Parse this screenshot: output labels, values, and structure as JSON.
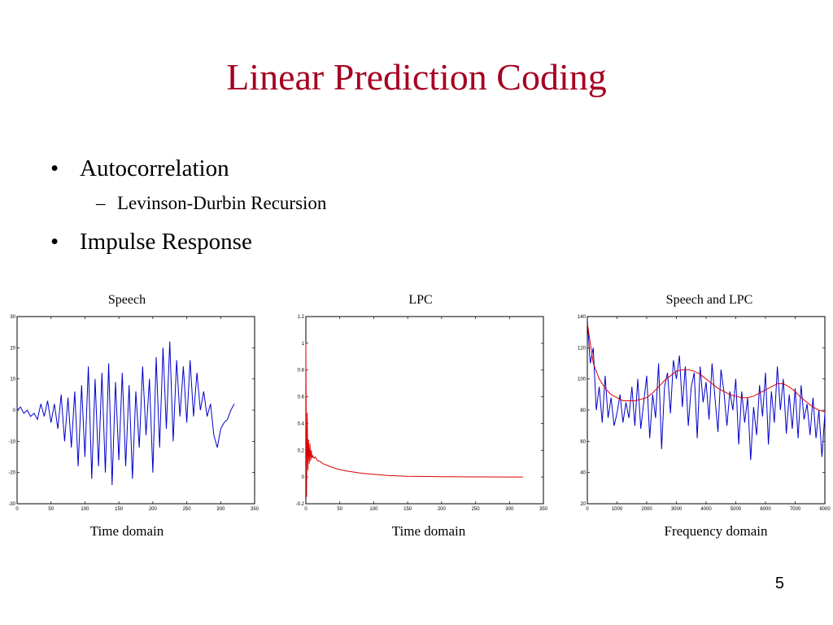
{
  "slide": {
    "title": "Linear Prediction Coding",
    "bullets": [
      {
        "text": "Autocorrelation",
        "sub": [
          "Levinson-Durbin Recursion"
        ]
      },
      {
        "text": "Impulse Response",
        "sub": []
      }
    ],
    "bullet_mark": "•",
    "sub_mark": "–",
    "page_number": "5"
  },
  "colors": {
    "title": "#a50021",
    "speech": "#0000cc",
    "lpc": "#dd0000"
  },
  "chart_data": [
    {
      "type": "line",
      "title": "Speech",
      "xlabel": "Time domain",
      "xlim": [
        0,
        350
      ],
      "ylim": [
        -30,
        30
      ],
      "xticks": [
        "0",
        "50",
        "100",
        "150",
        "200",
        "250",
        "300",
        "350"
      ],
      "yticks": [
        "-30",
        "-20",
        "-10",
        "0",
        "10",
        "20",
        "30"
      ],
      "series": [
        {
          "color": "#0000cc",
          "x": [
            0,
            5,
            10,
            15,
            20,
            25,
            30,
            35,
            40,
            45,
            50,
            55,
            60,
            65,
            70,
            75,
            80,
            85,
            90,
            95,
            100,
            105,
            110,
            115,
            120,
            125,
            130,
            135,
            140,
            145,
            150,
            155,
            160,
            165,
            170,
            175,
            180,
            185,
            190,
            195,
            200,
            205,
            210,
            215,
            220,
            225,
            230,
            235,
            240,
            245,
            250,
            255,
            260,
            265,
            270,
            275,
            280,
            285,
            290,
            295,
            300,
            305,
            310,
            315,
            320
          ],
          "y": [
            0,
            1,
            -1,
            0,
            -2,
            -1,
            -3,
            2,
            -2,
            3,
            -4,
            2,
            -6,
            5,
            -10,
            4,
            -12,
            6,
            -18,
            8,
            -15,
            14,
            -22,
            10,
            -18,
            12,
            -20,
            15,
            -24,
            9,
            -16,
            12,
            -18,
            8,
            -22,
            6,
            -12,
            14,
            -8,
            10,
            -20,
            17,
            -12,
            20,
            -6,
            22,
            -10,
            16,
            -2,
            14,
            -4,
            16,
            -2,
            12,
            0,
            6,
            -2,
            2,
            -8,
            -12,
            -6,
            -4,
            -3,
            0,
            2
          ]
        }
      ]
    },
    {
      "type": "line",
      "title": "LPC",
      "xlabel": "Time domain",
      "xlim": [
        0,
        350
      ],
      "ylim": [
        -0.2,
        1.2
      ],
      "xticks": [
        "0",
        "50",
        "100",
        "150",
        "200",
        "250",
        "300",
        "350"
      ],
      "yticks": [
        "-0.2",
        "0",
        "0.2",
        "0.4",
        "0.6",
        "0.8",
        "1",
        "1.2"
      ],
      "series": [
        {
          "color": "#dd0000",
          "x": [
            0,
            1,
            2,
            3,
            4,
            5,
            6,
            7,
            8,
            9,
            10,
            12,
            14,
            16,
            18,
            20,
            25,
            30,
            40,
            50,
            60,
            80,
            100,
            120,
            150,
            200,
            250,
            300,
            320
          ],
          "y": [
            1.0,
            -0.15,
            0.48,
            0.05,
            0.28,
            0.1,
            0.25,
            0.12,
            0.2,
            0.14,
            0.16,
            0.14,
            0.15,
            0.13,
            0.12,
            0.12,
            0.1,
            0.09,
            0.07,
            0.055,
            0.045,
            0.03,
            0.02,
            0.012,
            0.006,
            0.002,
            0.001,
            0.0,
            0.0
          ]
        }
      ]
    },
    {
      "type": "line",
      "title": "Speech and LPC",
      "xlabel": "Frequency domain",
      "xlim": [
        0,
        8000
      ],
      "ylim": [
        20,
        140
      ],
      "xticks": [
        "0",
        "1000",
        "2000",
        "3000",
        "4000",
        "5000",
        "6000",
        "7000",
        "8000"
      ],
      "yticks": [
        "20",
        "40",
        "60",
        "80",
        "100",
        "120",
        "140"
      ],
      "series": [
        {
          "color": "#0000cc",
          "x": [
            0,
            100,
            200,
            300,
            400,
            500,
            600,
            700,
            800,
            900,
            1000,
            1100,
            1200,
            1300,
            1400,
            1500,
            1600,
            1700,
            1800,
            1900,
            2000,
            2100,
            2200,
            2300,
            2400,
            2500,
            2600,
            2700,
            2800,
            2900,
            3000,
            3100,
            3200,
            3300,
            3400,
            3500,
            3600,
            3700,
            3800,
            3900,
            4000,
            4100,
            4200,
            4300,
            4400,
            4500,
            4600,
            4700,
            4800,
            4900,
            5000,
            5100,
            5200,
            5300,
            5400,
            5500,
            5600,
            5700,
            5800,
            5900,
            6000,
            6100,
            6200,
            6300,
            6400,
            6500,
            6600,
            6700,
            6800,
            6900,
            7000,
            7100,
            7200,
            7300,
            7400,
            7500,
            7600,
            7700,
            7800,
            7900,
            8000
          ],
          "y": [
            138,
            110,
            120,
            80,
            95,
            72,
            102,
            75,
            88,
            70,
            78,
            90,
            72,
            85,
            75,
            95,
            70,
            100,
            68,
            85,
            102,
            62,
            90,
            75,
            110,
            55,
            95,
            104,
            78,
            112,
            100,
            115,
            82,
            108,
            70,
            95,
            104,
            62,
            108,
            85,
            98,
            74,
            110,
            88,
            66,
            106,
            92,
            70,
            92,
            80,
            100,
            58,
            92,
            72,
            88,
            48,
            82,
            64,
            96,
            76,
            104,
            58,
            92,
            72,
            108,
            80,
            100,
            65,
            90,
            68,
            94,
            62,
            96,
            74,
            84,
            64,
            88,
            62,
            80,
            50,
            78
          ]
        },
        {
          "color": "#dd0000",
          "x": [
            0,
            200,
            400,
            600,
            800,
            1000,
            1200,
            1400,
            1600,
            1800,
            2000,
            2200,
            2400,
            2600,
            2800,
            3000,
            3200,
            3400,
            3600,
            3800,
            4000,
            4200,
            4400,
            4600,
            4800,
            5000,
            5200,
            5400,
            5600,
            5800,
            6000,
            6200,
            6400,
            6600,
            6800,
            7000,
            7200,
            7400,
            7600,
            7800,
            8000
          ],
          "y": [
            136,
            110,
            100,
            94,
            90,
            88,
            86,
            86,
            86,
            87,
            88,
            91,
            95,
            99,
            102,
            105,
            106,
            106,
            105,
            103,
            100,
            97,
            94,
            92,
            90,
            89,
            88,
            88,
            89,
            91,
            93,
            95,
            97,
            97,
            95,
            92,
            88,
            85,
            82,
            80,
            79
          ]
        }
      ]
    }
  ]
}
